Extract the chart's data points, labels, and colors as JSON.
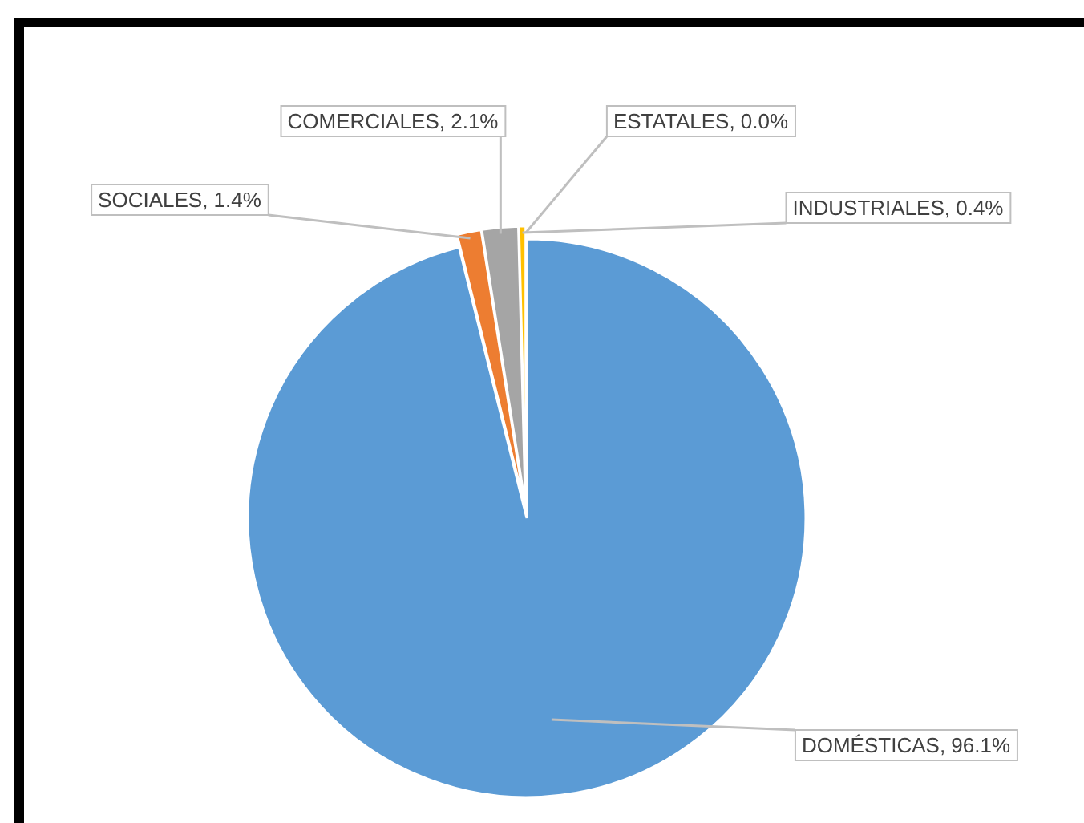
{
  "chart_data": {
    "type": "pie",
    "categories": [
      "DOMÉSTICAS",
      "SOCIALES",
      "COMERCIALES",
      "INDUSTRIALES",
      "ESTATALES"
    ],
    "values": [
      96.1,
      1.4,
      2.1,
      0.4,
      0.0
    ],
    "colors": [
      "#5b9bd5",
      "#ed7d31",
      "#a5a5a5",
      "#ffc000",
      "#4472c4"
    ],
    "value_labels": [
      ", 96.1%",
      ", 1.4%",
      ", 2.1%",
      ", 0.4%",
      ", 0.0%"
    ]
  }
}
